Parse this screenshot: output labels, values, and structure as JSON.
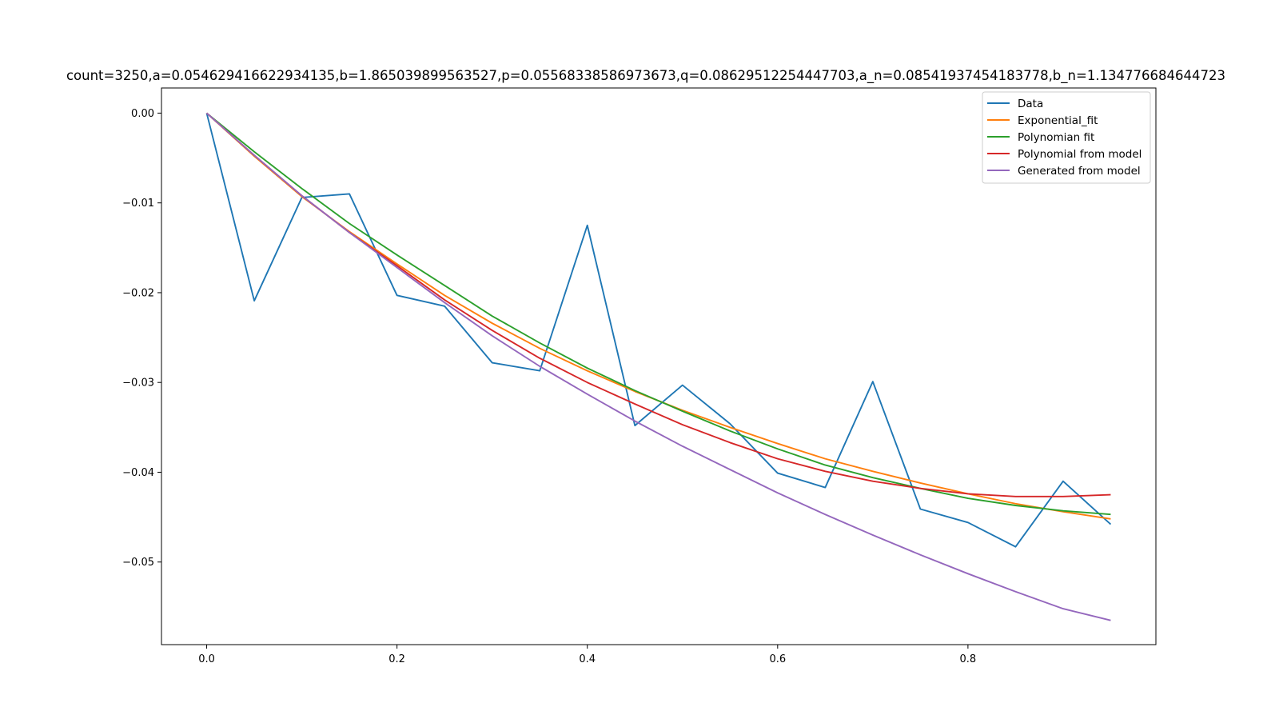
{
  "chart_data": {
    "type": "line",
    "title": "count=3250,a=0.054629416622934135,b=1.865039899563527,p=0.05568338586973673,q=0.08629512254447703,a_n=0.08541937454183778,b_n=1.134776684644723",
    "xlabel": "",
    "ylabel": "",
    "xlim": [
      -0.0475,
      0.9975
    ],
    "ylim": [
      -0.0592,
      0.0028
    ],
    "x_ticks": [
      0.0,
      0.2,
      0.4,
      0.6,
      0.8
    ],
    "x_tick_labels": [
      "0.0",
      "0.2",
      "0.4",
      "0.6",
      "0.8"
    ],
    "y_ticks": [
      0.0,
      -0.01,
      -0.02,
      -0.03,
      -0.04,
      -0.05
    ],
    "y_tick_labels": [
      "0.00",
      "−0.01",
      "−0.02",
      "−0.03",
      "−0.04",
      "−0.05"
    ],
    "grid": false,
    "legend_position": "top-right",
    "x": [
      0.0,
      0.05,
      0.1,
      0.15,
      0.2,
      0.25,
      0.3,
      0.35,
      0.4,
      0.45,
      0.5,
      0.55,
      0.6,
      0.65,
      0.7,
      0.75,
      0.8,
      0.85,
      0.9,
      0.95
    ],
    "series": [
      {
        "name": "Data",
        "color": "#1f77b4",
        "values": [
          0.0,
          -0.0209,
          -0.0094,
          -0.009,
          -0.0203,
          -0.0215,
          -0.0278,
          -0.0287,
          -0.0125,
          -0.0348,
          -0.0303,
          -0.0346,
          -0.0401,
          -0.0417,
          -0.0299,
          -0.0441,
          -0.0456,
          -0.0483,
          -0.041,
          -0.0458
        ]
      },
      {
        "name": "Exponential_fit",
        "color": "#ff7f0e",
        "values": [
          0.0,
          -0.0048,
          -0.0093,
          -0.0132,
          -0.0168,
          -0.0203,
          -0.0234,
          -0.0262,
          -0.0287,
          -0.031,
          -0.0331,
          -0.035,
          -0.0368,
          -0.0385,
          -0.0399,
          -0.0412,
          -0.0424,
          -0.0435,
          -0.0444,
          -0.0452
        ]
      },
      {
        "name": "Polynomian fit",
        "color": "#2ca02c",
        "values": [
          0.0,
          -0.0043,
          -0.0084,
          -0.0123,
          -0.0158,
          -0.0192,
          -0.0226,
          -0.0256,
          -0.0284,
          -0.0309,
          -0.0332,
          -0.0354,
          -0.0374,
          -0.0392,
          -0.0406,
          -0.0418,
          -0.0429,
          -0.0437,
          -0.0443,
          -0.0447
        ]
      },
      {
        "name": "Polynomial from model",
        "color": "#d62728",
        "values": [
          0.0,
          -0.0047,
          -0.0092,
          -0.0133,
          -0.017,
          -0.0208,
          -0.0242,
          -0.0273,
          -0.03,
          -0.0324,
          -0.0347,
          -0.0367,
          -0.0385,
          -0.0399,
          -0.041,
          -0.0418,
          -0.0424,
          -0.0427,
          -0.0427,
          -0.0425
        ]
      },
      {
        "name": "Generated from model",
        "color": "#9467bd",
        "values": [
          0.0,
          -0.0047,
          -0.0092,
          -0.0133,
          -0.0172,
          -0.0211,
          -0.0248,
          -0.0282,
          -0.0313,
          -0.0343,
          -0.0371,
          -0.0397,
          -0.0423,
          -0.0447,
          -0.047,
          -0.0492,
          -0.0513,
          -0.0533,
          -0.0552,
          -0.0565
        ]
      }
    ]
  }
}
